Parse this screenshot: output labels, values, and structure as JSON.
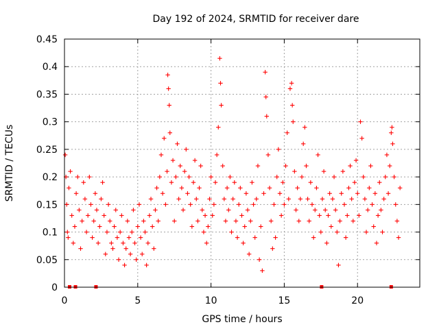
{
  "chart_data": {
    "type": "scatter",
    "title": "Day 192 of 2024, SRMTID for receiver dare",
    "xlabel": "GPS time / hours",
    "ylabel": "SRMTID / TECUs",
    "xlim": [
      0,
      24.25
    ],
    "ylim": [
      0,
      0.45
    ],
    "xticks": [
      0,
      5,
      10,
      15,
      20
    ],
    "yticks": [
      0,
      0.05,
      0.1,
      0.15,
      0.2,
      0.25,
      0.3,
      0.35,
      0.4,
      0.45
    ],
    "xtick_labels": [
      "0",
      "5",
      "10",
      "15",
      "20"
    ],
    "ytick_labels": [
      "0",
      "0.05",
      "0.1",
      "0.15",
      "0.2",
      "0.25",
      "0.3",
      "0.35",
      "0.4",
      "0.45"
    ],
    "grid": true,
    "marker": "plus",
    "color": "#ff0000",
    "series": [
      {
        "name": "SRMTID",
        "points": [
          [
            0.05,
            0.24
          ],
          [
            0.1,
            0.2
          ],
          [
            0.15,
            0.15
          ],
          [
            0.2,
            0.1
          ],
          [
            0.25,
            0.09
          ],
          [
            0.3,
            0.18
          ],
          [
            0.4,
            0.21
          ],
          [
            0.5,
            0.13
          ],
          [
            0.6,
            0.08
          ],
          [
            0.7,
            0.11
          ],
          [
            0.8,
            0.17
          ],
          [
            0.9,
            0.2
          ],
          [
            1.0,
            0.14
          ],
          [
            1.1,
            0.07
          ],
          [
            1.2,
            0.12
          ],
          [
            1.3,
            0.19
          ],
          [
            1.4,
            0.16
          ],
          [
            1.5,
            0.1
          ],
          [
            1.6,
            0.13
          ],
          [
            1.7,
            0.2
          ],
          [
            1.8,
            0.15
          ],
          [
            1.9,
            0.09
          ],
          [
            2.0,
            0.12
          ],
          [
            2.1,
            0.17
          ],
          [
            2.2,
            0.14
          ],
          [
            2.3,
            0.08
          ],
          [
            2.4,
            0.11
          ],
          [
            2.5,
            0.16
          ],
          [
            2.6,
            0.19
          ],
          [
            2.7,
            0.13
          ],
          [
            2.8,
            0.06
          ],
          [
            2.9,
            0.1
          ],
          [
            3.0,
            0.15
          ],
          [
            3.1,
            0.12
          ],
          [
            3.2,
            0.08
          ],
          [
            3.3,
            0.07
          ],
          [
            3.4,
            0.11
          ],
          [
            3.5,
            0.14
          ],
          [
            3.6,
            0.09
          ],
          [
            3.7,
            0.05
          ],
          [
            3.8,
            0.1
          ],
          [
            3.9,
            0.13
          ],
          [
            4.0,
            0.08
          ],
          [
            4.1,
            0.04
          ],
          [
            4.2,
            0.07
          ],
          [
            4.3,
            0.12
          ],
          [
            4.4,
            0.09
          ],
          [
            4.5,
            0.06
          ],
          [
            4.6,
            0.1
          ],
          [
            4.7,
            0.14
          ],
          [
            4.8,
            0.08
          ],
          [
            4.9,
            0.05
          ],
          [
            5.0,
            0.11
          ],
          [
            5.1,
            0.15
          ],
          [
            5.2,
            0.09
          ],
          [
            5.3,
            0.06
          ],
          [
            5.4,
            0.12
          ],
          [
            5.5,
            0.1
          ],
          [
            5.6,
            0.04
          ],
          [
            5.7,
            0.08
          ],
          [
            5.8,
            0.13
          ],
          [
            5.9,
            0.16
          ],
          [
            6.0,
            0.11
          ],
          [
            6.1,
            0.07
          ],
          [
            6.2,
            0.14
          ],
          [
            6.3,
            0.18
          ],
          [
            6.4,
            0.12
          ],
          [
            6.5,
            0.2
          ],
          [
            6.6,
            0.24
          ],
          [
            6.7,
            0.17
          ],
          [
            6.8,
            0.27
          ],
          [
            6.9,
            0.15
          ],
          [
            7.0,
            0.21
          ],
          [
            7.05,
            0.385
          ],
          [
            7.1,
            0.36
          ],
          [
            7.15,
            0.33
          ],
          [
            7.2,
            0.28
          ],
          [
            7.3,
            0.19
          ],
          [
            7.4,
            0.23
          ],
          [
            7.5,
            0.12
          ],
          [
            7.6,
            0.2
          ],
          [
            7.7,
            0.26
          ],
          [
            7.8,
            0.16
          ],
          [
            7.9,
            0.22
          ],
          [
            8.0,
            0.18
          ],
          [
            8.1,
            0.14
          ],
          [
            8.2,
            0.21
          ],
          [
            8.3,
            0.25
          ],
          [
            8.4,
            0.17
          ],
          [
            8.5,
            0.2
          ],
          [
            8.6,
            0.15
          ],
          [
            8.7,
            0.11
          ],
          [
            8.8,
            0.19
          ],
          [
            8.9,
            0.23
          ],
          [
            9.0,
            0.16
          ],
          [
            9.1,
            0.12
          ],
          [
            9.2,
            0.18
          ],
          [
            9.3,
            0.22
          ],
          [
            9.4,
            0.14
          ],
          [
            9.5,
            0.1
          ],
          [
            9.6,
            0.13
          ],
          [
            9.7,
            0.08
          ],
          [
            9.8,
            0.11
          ],
          [
            9.9,
            0.16
          ],
          [
            10.0,
            0.2
          ],
          [
            10.1,
            0.13
          ],
          [
            10.2,
            0.15
          ],
          [
            10.3,
            0.19
          ],
          [
            10.4,
            0.24
          ],
          [
            10.5,
            0.29
          ],
          [
            10.6,
            0.415
          ],
          [
            10.65,
            0.37
          ],
          [
            10.7,
            0.33
          ],
          [
            10.8,
            0.22
          ],
          [
            10.9,
            0.16
          ],
          [
            11.0,
            0.12
          ],
          [
            11.1,
            0.18
          ],
          [
            11.2,
            0.14
          ],
          [
            11.3,
            0.2
          ],
          [
            11.4,
            0.1
          ],
          [
            11.5,
            0.16
          ],
          [
            11.6,
            0.19
          ],
          [
            11.7,
            0.12
          ],
          [
            11.8,
            0.09
          ],
          [
            11.9,
            0.15
          ],
          [
            12.0,
            0.18
          ],
          [
            12.1,
            0.13
          ],
          [
            12.2,
            0.08
          ],
          [
            12.3,
            0.11
          ],
          [
            12.4,
            0.17
          ],
          [
            12.5,
            0.14
          ],
          [
            12.6,
            0.06
          ],
          [
            12.7,
            0.12
          ],
          [
            12.8,
            0.19
          ],
          [
            12.9,
            0.15
          ],
          [
            13.0,
            0.09
          ],
          [
            13.1,
            0.16
          ],
          [
            13.2,
            0.22
          ],
          [
            13.3,
            0.05
          ],
          [
            13.4,
            0.11
          ],
          [
            13.5,
            0.03
          ],
          [
            13.6,
            0.17
          ],
          [
            13.7,
            0.39
          ],
          [
            13.75,
            0.345
          ],
          [
            13.8,
            0.31
          ],
          [
            13.9,
            0.24
          ],
          [
            14.0,
            0.18
          ],
          [
            14.1,
            0.12
          ],
          [
            14.2,
            0.07
          ],
          [
            14.3,
            0.15
          ],
          [
            14.4,
            0.09
          ],
          [
            14.5,
            0.2
          ],
          [
            14.6,
            0.25
          ],
          [
            14.7,
            0.17
          ],
          [
            14.8,
            0.13
          ],
          [
            14.9,
            0.19
          ],
          [
            15.0,
            0.15
          ],
          [
            15.1,
            0.22
          ],
          [
            15.2,
            0.28
          ],
          [
            15.3,
            0.16
          ],
          [
            15.4,
            0.36
          ],
          [
            15.5,
            0.37
          ],
          [
            15.55,
            0.33
          ],
          [
            15.6,
            0.3
          ],
          [
            15.7,
            0.21
          ],
          [
            15.8,
            0.14
          ],
          [
            15.9,
            0.18
          ],
          [
            16.0,
            0.12
          ],
          [
            16.1,
            0.16
          ],
          [
            16.2,
            0.2
          ],
          [
            16.3,
            0.26
          ],
          [
            16.4,
            0.29
          ],
          [
            16.5,
            0.22
          ],
          [
            16.6,
            0.16
          ],
          [
            16.7,
            0.12
          ],
          [
            16.8,
            0.19
          ],
          [
            16.9,
            0.15
          ],
          [
            17.0,
            0.09
          ],
          [
            17.1,
            0.14
          ],
          [
            17.2,
            0.18
          ],
          [
            17.3,
            0.24
          ],
          [
            17.4,
            0.13
          ],
          [
            17.5,
            0.1
          ],
          [
            17.6,
            0.16
          ],
          [
            17.7,
            0.21
          ],
          [
            17.8,
            0.14
          ],
          [
            17.9,
            0.08
          ],
          [
            18.0,
            0.13
          ],
          [
            18.1,
            0.17
          ],
          [
            18.2,
            0.11
          ],
          [
            18.3,
            0.16
          ],
          [
            18.4,
            0.2
          ],
          [
            18.5,
            0.14
          ],
          [
            18.6,
            0.1
          ],
          [
            18.7,
            0.04
          ],
          [
            18.8,
            0.12
          ],
          [
            18.9,
            0.17
          ],
          [
            19.0,
            0.21
          ],
          [
            19.1,
            0.15
          ],
          [
            19.2,
            0.09
          ],
          [
            19.3,
            0.13
          ],
          [
            19.4,
            0.18
          ],
          [
            19.5,
            0.22
          ],
          [
            19.6,
            0.16
          ],
          [
            19.7,
            0.12
          ],
          [
            19.8,
            0.19
          ],
          [
            19.9,
            0.23
          ],
          [
            20.0,
            0.17
          ],
          [
            20.1,
            0.13
          ],
          [
            20.2,
            0.3
          ],
          [
            20.3,
            0.27
          ],
          [
            20.4,
            0.2
          ],
          [
            20.5,
            0.16
          ],
          [
            20.6,
            0.1
          ],
          [
            20.7,
            0.14
          ],
          [
            20.8,
            0.18
          ],
          [
            20.9,
            0.22
          ],
          [
            21.0,
            0.15
          ],
          [
            21.1,
            0.11
          ],
          [
            21.2,
            0.17
          ],
          [
            21.3,
            0.08
          ],
          [
            21.4,
            0.13
          ],
          [
            21.5,
            0.19
          ],
          [
            21.6,
            0.14
          ],
          [
            21.7,
            0.1
          ],
          [
            21.8,
            0.16
          ],
          [
            21.9,
            0.2
          ],
          [
            22.0,
            0.24
          ],
          [
            22.1,
            0.17
          ],
          [
            22.2,
            0.22
          ],
          [
            22.3,
            0.28
          ],
          [
            22.35,
            0.29
          ],
          [
            22.4,
            0.26
          ],
          [
            22.5,
            0.2
          ],
          [
            22.6,
            0.15
          ],
          [
            22.7,
            0.12
          ],
          [
            22.8,
            0.09
          ],
          [
            22.9,
            0.18
          ]
        ]
      }
    ],
    "baseline_markers_x": [
      0.35,
      0.75,
      2.15,
      17.55,
      22.3
    ]
  }
}
